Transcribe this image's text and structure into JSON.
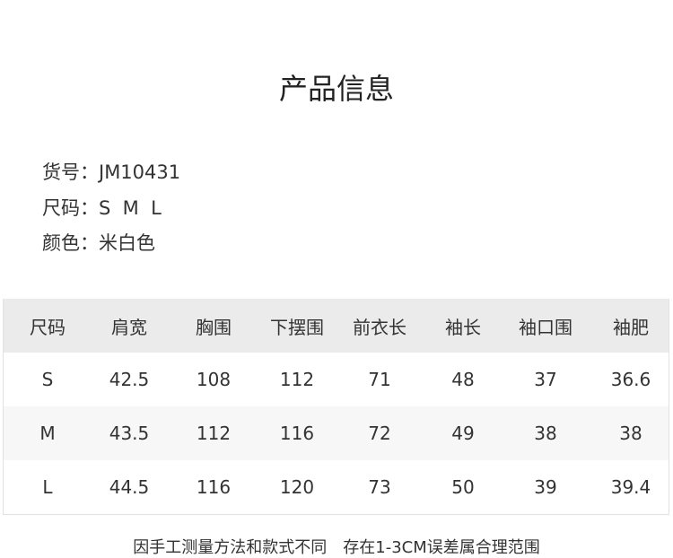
{
  "header": {
    "title": "产品信息"
  },
  "info": [
    {
      "label": "货号：",
      "value": "JM10431"
    },
    {
      "label": "尺码：",
      "value": "S  M  L"
    },
    {
      "label": "颜色：",
      "value": "米白色"
    }
  ],
  "table": {
    "columns": [
      "尺码",
      "肩宽",
      "胸围",
      "下摆围",
      "前衣长",
      "袖长",
      "袖口围",
      "袖肥"
    ],
    "rows": [
      [
        "S",
        "42.5",
        "108",
        "112",
        "71",
        "48",
        "37",
        "36.6"
      ],
      [
        "M",
        "43.5",
        "112",
        "116",
        "72",
        "49",
        "38",
        "38"
      ],
      [
        "L",
        "44.5",
        "116",
        "120",
        "73",
        "50",
        "39",
        "39.4"
      ]
    ]
  },
  "footnote": "因手工测量方法和款式不同　存在1-3CM误差属合理范围"
}
